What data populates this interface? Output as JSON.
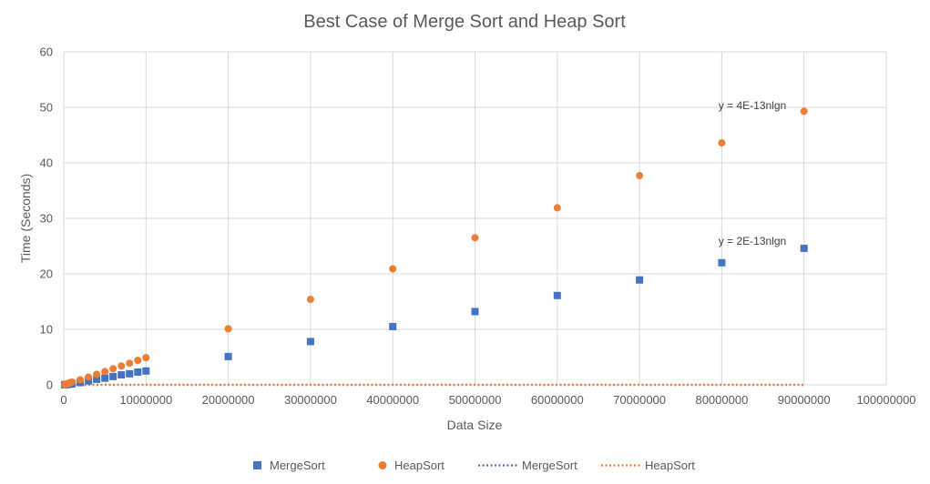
{
  "chart_data": {
    "type": "scatter",
    "title": "Best Case of Merge Sort and Heap Sort",
    "xlabel": "Data Size",
    "ylabel": "Time (Seconds)",
    "xlim": [
      0,
      100000000
    ],
    "ylim": [
      0,
      60
    ],
    "x_ticks": [
      "0",
      "10000000",
      "20000000",
      "30000000",
      "40000000",
      "50000000",
      "60000000",
      "70000000",
      "80000000",
      "90000000",
      "100000000"
    ],
    "y_ticks": [
      "0",
      "10",
      "20",
      "30",
      "40",
      "50",
      "60"
    ],
    "grid": true,
    "legend_position": "bottom",
    "series": [
      {
        "name": "MergeSort",
        "marker": "square",
        "color": "#4472C4",
        "x": [
          100000,
          200000,
          300000,
          400000,
          500000,
          600000,
          700000,
          800000,
          900000,
          1000000,
          2000000,
          3000000,
          4000000,
          5000000,
          6000000,
          7000000,
          8000000,
          9000000,
          10000000,
          20000000,
          30000000,
          40000000,
          50000000,
          60000000,
          70000000,
          80000000,
          90000000
        ],
        "y": [
          0.02,
          0.04,
          0.06,
          0.08,
          0.1,
          0.12,
          0.14,
          0.16,
          0.18,
          0.2,
          0.4,
          0.7,
          1.0,
          1.2,
          1.5,
          1.8,
          2.0,
          2.3,
          2.5,
          5.1,
          7.8,
          10.5,
          13.2,
          16.1,
          18.9,
          22.0,
          24.6
        ]
      },
      {
        "name": "HeapSort",
        "marker": "circle",
        "color": "#ED7D31",
        "x": [
          100000,
          200000,
          300000,
          400000,
          500000,
          600000,
          700000,
          800000,
          900000,
          1000000,
          2000000,
          3000000,
          4000000,
          5000000,
          6000000,
          7000000,
          8000000,
          9000000,
          10000000,
          20000000,
          30000000,
          40000000,
          50000000,
          60000000,
          70000000,
          80000000,
          90000000
        ],
        "y": [
          0.05,
          0.1,
          0.15,
          0.2,
          0.25,
          0.3,
          0.35,
          0.4,
          0.45,
          0.5,
          0.9,
          1.4,
          1.9,
          2.4,
          2.9,
          3.4,
          3.9,
          4.4,
          4.9,
          10.1,
          15.4,
          20.9,
          26.5,
          31.9,
          37.7,
          43.6,
          49.3
        ]
      }
    ],
    "trendlines": [
      {
        "name": "MergeSort",
        "color": "#4472C4",
        "style": "dotted",
        "equation": "y = 2E-13nlgn",
        "coefficient": 2e-13
      },
      {
        "name": "HeapSort",
        "color": "#ED7D31",
        "style": "dotted",
        "equation": "y = 4E-13nlgn",
        "coefficient": 4e-13
      }
    ]
  }
}
